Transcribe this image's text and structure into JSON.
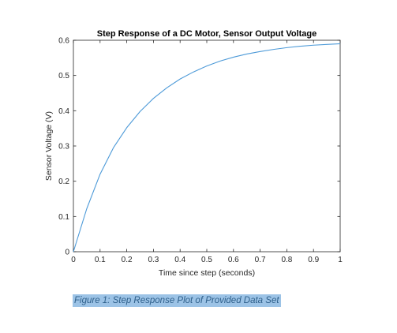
{
  "caption": "Figure 1: Step Response Plot of Provided Data Set",
  "colors": {
    "line": "#4d9ad8",
    "axes": "#262626",
    "caption_bg": "#9cc3e6",
    "caption_text": "#2e5f8a"
  },
  "chart_data": {
    "type": "line",
    "title": "Step Response of a DC Motor, Sensor Output Voltage",
    "xlabel": "Time since step (seconds)",
    "ylabel": "Sensor Voltage (V)",
    "xlim": [
      0,
      1
    ],
    "ylim": [
      0,
      0.6
    ],
    "xticks": [
      "0",
      "0.1",
      "0.2",
      "0.3",
      "0.4",
      "0.5",
      "0.6",
      "0.7",
      "0.8",
      "0.9",
      "1"
    ],
    "yticks": [
      "0",
      "0.1",
      "0.2",
      "0.3",
      "0.4",
      "0.5",
      "0.6"
    ],
    "grid": false,
    "legend": "none",
    "series": [
      {
        "x": [
          0,
          0.05,
          0.1,
          0.15,
          0.2,
          0.25,
          0.3,
          0.35,
          0.4,
          0.45,
          0.5,
          0.55,
          0.6,
          0.65,
          0.7,
          0.75,
          0.8,
          0.85,
          0.9,
          0.95,
          1
        ],
        "y": [
          0,
          0.122,
          0.22,
          0.295,
          0.352,
          0.398,
          0.435,
          0.465,
          0.49,
          0.51,
          0.527,
          0.541,
          0.552,
          0.561,
          0.568,
          0.574,
          0.579,
          0.583,
          0.586,
          0.588,
          0.59
        ]
      }
    ]
  }
}
